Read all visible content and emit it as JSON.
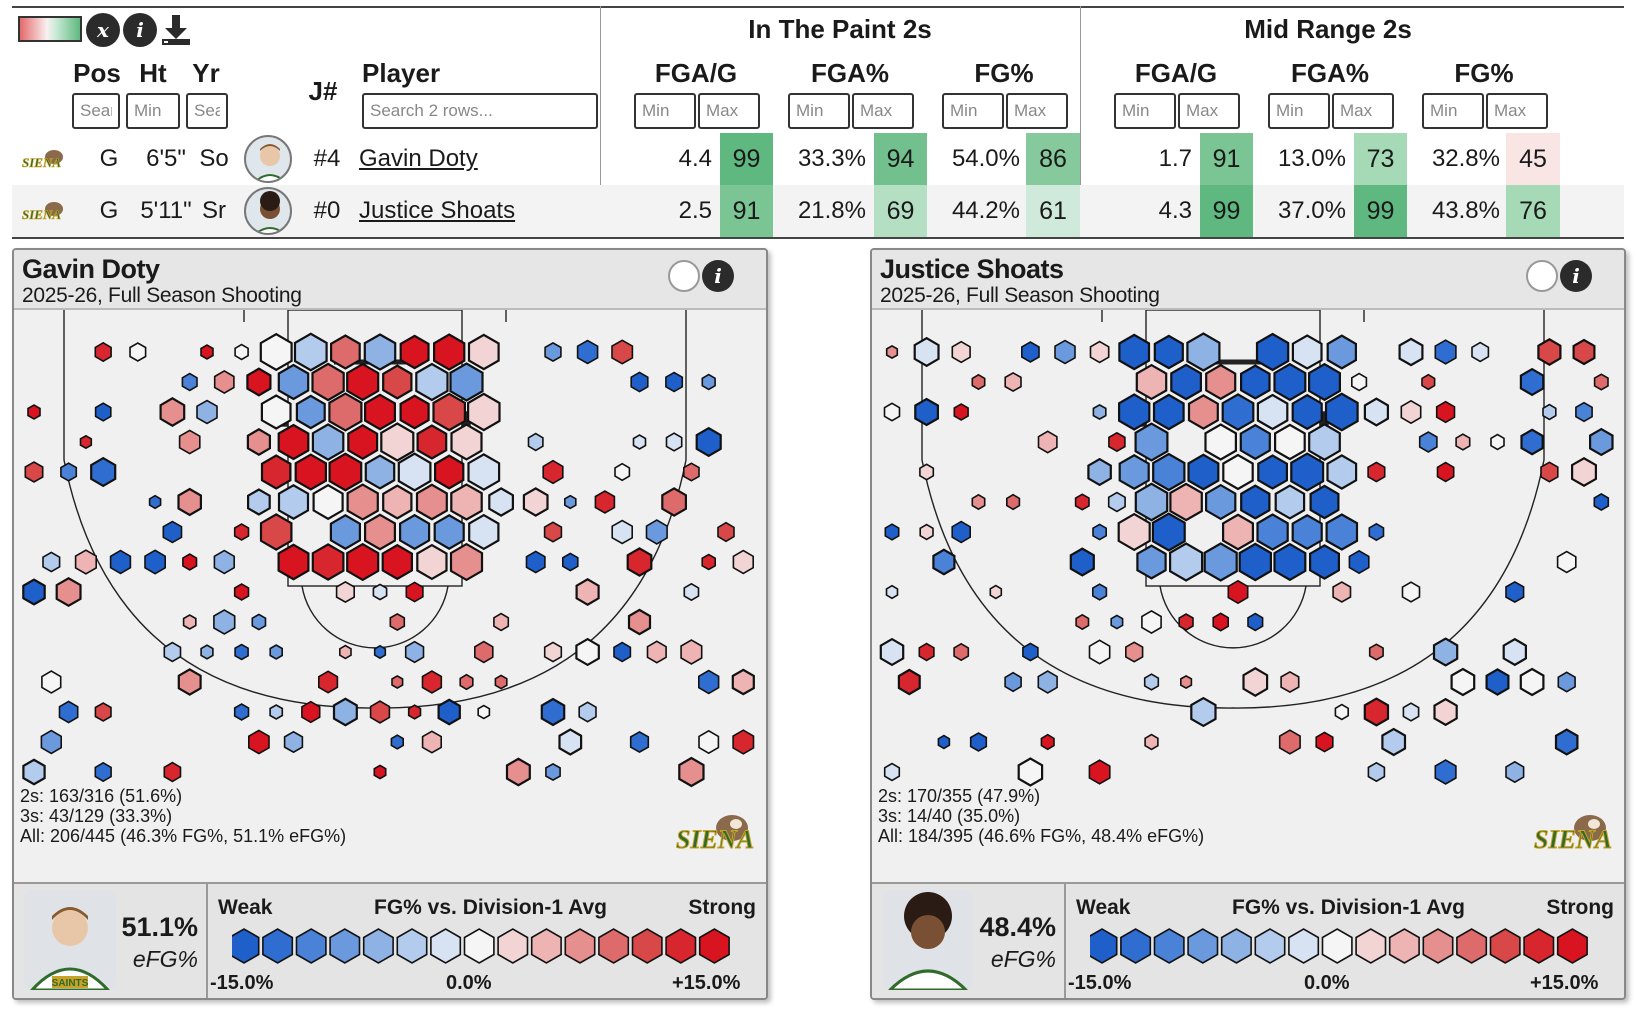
{
  "toolbar": {
    "x_icon": "x-formula-icon",
    "info_icon": "info-icon",
    "download_icon": "download-icon",
    "x_label": "x",
    "i_label": "i"
  },
  "table": {
    "headers": {
      "pos": "Pos",
      "ht": "Ht",
      "yr": "Yr",
      "jersey": "J#",
      "player": "Player"
    },
    "groups": [
      {
        "title": "In The Paint 2s",
        "cols": [
          "FGA/G",
          "FGA%",
          "FG%"
        ]
      },
      {
        "title": "Mid Range 2s",
        "cols": [
          "FGA/G",
          "FGA%",
          "FG%"
        ]
      }
    ],
    "filters": {
      "pos": "Sear",
      "ht": "Min",
      "yr": "Sea",
      "player": "Search 2 rows...",
      "min": "Min",
      "max": "Max"
    },
    "rows": [
      {
        "pos": "G",
        "ht": "6'5\"",
        "yr": "So",
        "jersey": "#4",
        "name": "Gavin Doty",
        "stats": [
          {
            "val": "4.4",
            "pct": "99"
          },
          {
            "val": "33.3%",
            "pct": "94"
          },
          {
            "val": "54.0%",
            "pct": "86"
          },
          {
            "val": "1.7",
            "pct": "91"
          },
          {
            "val": "13.0%",
            "pct": "73"
          },
          {
            "val": "32.8%",
            "pct": "45"
          }
        ]
      },
      {
        "pos": "G",
        "ht": "5'11\"",
        "yr": "Sr",
        "jersey": "#0",
        "name": "Justice Shoats",
        "stats": [
          {
            "val": "2.5",
            "pct": "91"
          },
          {
            "val": "21.8%",
            "pct": "69"
          },
          {
            "val": "44.2%",
            "pct": "61"
          },
          {
            "val": "4.3",
            "pct": "99"
          },
          {
            "val": "37.0%",
            "pct": "99"
          },
          {
            "val": "43.8%",
            "pct": "76"
          }
        ]
      }
    ]
  },
  "cards": [
    {
      "name": "Gavin Doty",
      "subtitle": "2025-26, Full Season Shooting",
      "twos": "2s: 163/316 (51.6%)",
      "threes": "3s: 43/129 (33.3%)",
      "all": "All: 206/445 (46.3% FG%, 51.1% eFG%)",
      "efg": "51.1%",
      "efg_label": "eFG%",
      "jersey_text": "SAINTS"
    },
    {
      "name": "Justice Shoats",
      "subtitle": "2025-26, Full Season Shooting",
      "twos": "2s: 170/355 (47.9%)",
      "threes": "3s: 14/40 (35.0%)",
      "all": "All: 184/395 (46.6% FG%, 48.4% eFG%)",
      "efg": "48.4%",
      "efg_label": "eFG%",
      "jersey_text": ""
    }
  ],
  "scale": {
    "weak": "Weak",
    "title": "FG% vs. Division-1 Avg",
    "strong": "Strong",
    "min": "-15.0%",
    "mid": "0.0%",
    "max": "+15.0%"
  },
  "team_logo_text": "SIENA",
  "colors": {
    "deep_blue": "#1f5fc9",
    "deep_red": "#d7141f",
    "neutral": "#f5f5f5",
    "pct_high": "#5fb87f",
    "pct_low": "#f7e4e2"
  }
}
